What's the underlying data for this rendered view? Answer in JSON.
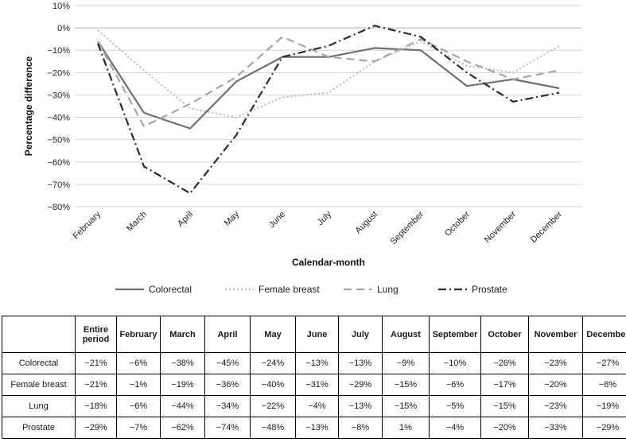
{
  "chart_data": {
    "type": "line",
    "xlabel": "Calendar-month",
    "ylabel": "Percentage difference",
    "categories": [
      "February",
      "March",
      "April",
      "May",
      "June",
      "July",
      "August",
      "September",
      "October",
      "November",
      "December"
    ],
    "ylim": [
      -80,
      10
    ],
    "yticks": [
      10,
      0,
      -10,
      -20,
      -30,
      -40,
      -50,
      -60,
      -70,
      -80
    ],
    "ytick_labels": [
      "10%",
      "0%",
      "−10%",
      "−20%",
      "−30%",
      "−40%",
      "−50%",
      "−60%",
      "−70%",
      "−80%"
    ],
    "grid": true,
    "legend_position": "bottom",
    "series": [
      {
        "name": "Colorectal",
        "values": [
          -6,
          -38,
          -45,
          -24,
          -13,
          -13,
          -9,
          -10,
          -26,
          -23,
          -27
        ],
        "color": "#707070",
        "dash": "",
        "width": 2.2
      },
      {
        "name": "Female breast",
        "values": [
          -1,
          -19,
          -36,
          -40,
          -31,
          -29,
          -15,
          -6,
          -17,
          -20,
          -8
        ],
        "color": "#bdbdbd",
        "dash": "2 3",
        "width": 2.2
      },
      {
        "name": "Lung",
        "values": [
          -6,
          -44,
          -34,
          -22,
          -4,
          -13,
          -15,
          -5,
          -15,
          -23,
          -19
        ],
        "color": "#a6a6a6",
        "dash": "10 6",
        "width": 2.2
      },
      {
        "name": "Prostate",
        "values": [
          -7,
          -62,
          -74,
          -48,
          -13,
          -8,
          1,
          -4,
          -20,
          -33,
          -29
        ],
        "color": "#2b2b2b",
        "dash": "10 4 2 4",
        "width": 2.2
      }
    ]
  },
  "table": {
    "headers": [
      "",
      "Entire period",
      "February",
      "March",
      "April",
      "May",
      "June",
      "July",
      "August",
      "September",
      "October",
      "November",
      "December"
    ],
    "rows": [
      {
        "label": "Colorectal",
        "cells": [
          "−21%",
          "−6%",
          "−38%",
          "−45%",
          "−24%",
          "−13%",
          "−13%",
          "−9%",
          "−10%",
          "−26%",
          "−23%",
          "−27%"
        ]
      },
      {
        "label": "Female breast",
        "cells": [
          "−21%",
          "−1%",
          "−19%",
          "−36%",
          "−40%",
          "−31%",
          "−29%",
          "−15%",
          "−6%",
          "−17%",
          "−20%",
          "−8%"
        ]
      },
      {
        "label": "Lung",
        "cells": [
          "−18%",
          "−6%",
          "−44%",
          "−34%",
          "−22%",
          "−4%",
          "−13%",
          "−15%",
          "−5%",
          "−15%",
          "−23%",
          "−19%"
        ]
      },
      {
        "label": "Prostate",
        "cells": [
          "−29%",
          "−7%",
          "−62%",
          "−74%",
          "−48%",
          "−13%",
          "−8%",
          "1%",
          "−4%",
          "−20%",
          "−33%",
          "−29%"
        ]
      }
    ]
  }
}
